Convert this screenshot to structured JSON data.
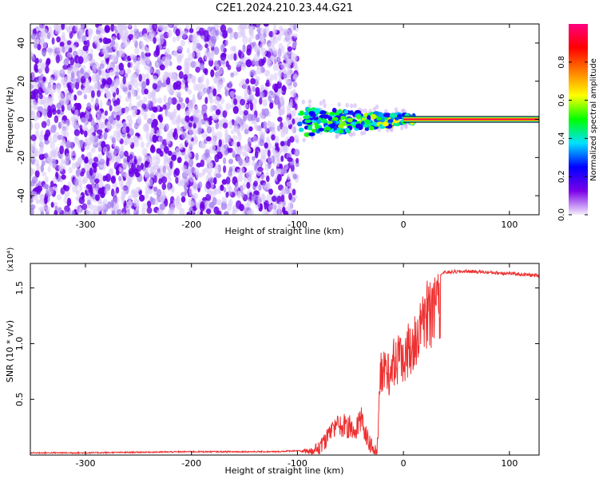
{
  "title": "C2E1.2024.210.23.44.G21",
  "chart_data": [
    {
      "type": "heatmap",
      "xlabel": "Height of straight line (km)",
      "ylabel": "Frequency (Hz)",
      "xlim": [
        -352,
        128
      ],
      "ylim": [
        -50,
        50
      ],
      "xticks": [
        -300,
        -200,
        -100,
        0,
        100
      ],
      "xtick_labels": [
        "-300",
        "-200",
        "-100",
        "0",
        "100"
      ],
      "yticks": [
        -40,
        -20,
        0,
        20,
        40
      ],
      "ytick_labels": [
        "-40",
        "-20",
        "0",
        "20",
        "40"
      ],
      "colorbar": {
        "label": "Normalized spectral amplitude",
        "range": [
          0,
          1
        ],
        "ticks": [
          0.0,
          0.2,
          0.4,
          0.6,
          0.8
        ],
        "tick_labels": [
          "0.0",
          "0.2",
          "0.4",
          "0.6",
          "0.8"
        ],
        "colors": [
          "#f4eefc",
          "#7a00e8",
          "#0000ff",
          "#00e0ff",
          "#00ff00",
          "#ffff00",
          "#ff7f00",
          "#ff0000",
          "#ff0080"
        ]
      },
      "regions": [
        {
          "name": "noise",
          "x_range": [
            -352,
            -100
          ],
          "y_range": [
            -50,
            50
          ],
          "amplitude_range": [
            0.0,
            0.15
          ]
        },
        {
          "name": "transition",
          "x_range": [
            -100,
            10
          ],
          "center_freq": 0,
          "spread_hz": [
            8,
            2
          ],
          "amplitude_range": [
            0.2,
            0.7
          ]
        },
        {
          "name": "carrier",
          "x_range": [
            0,
            128
          ],
          "center_freq": 0,
          "amplitude": 0.95
        }
      ],
      "grid": false
    },
    {
      "type": "line",
      "xlabel": "Height of straight line (km)",
      "ylabel": "SNR (10 * v/v)",
      "yscale_label": "(x10⁴)",
      "xlim": [
        -352,
        128
      ],
      "ylim": [
        0,
        1.72
      ],
      "xticks": [
        -300,
        -200,
        -100,
        0,
        100
      ],
      "xtick_labels": [
        "-300",
        "-200",
        "-100",
        "0",
        "100"
      ],
      "yticks": [
        0.5,
        1.0,
        1.5
      ],
      "ytick_labels": [
        "0.5",
        "1.0",
        "1.5"
      ],
      "color": "#ee3030",
      "envelope": {
        "x": [
          -352,
          -300,
          -200,
          -120,
          -100,
          -85,
          -75,
          -65,
          -55,
          -45,
          -40,
          -35,
          -30,
          -25,
          -22,
          -20,
          -15,
          -10,
          -5,
          0,
          5,
          10,
          15,
          20,
          30,
          40,
          60,
          80,
          100,
          128
        ],
        "y": [
          0.02,
          0.02,
          0.03,
          0.03,
          0.04,
          0.08,
          0.2,
          0.35,
          0.38,
          0.33,
          0.45,
          0.28,
          0.15,
          0.1,
          0.9,
          0.95,
          0.9,
          1.05,
          1.1,
          1.15,
          1.2,
          1.3,
          1.45,
          1.55,
          1.62,
          1.64,
          1.65,
          1.64,
          1.63,
          1.61
        ]
      },
      "grid": false
    }
  ]
}
